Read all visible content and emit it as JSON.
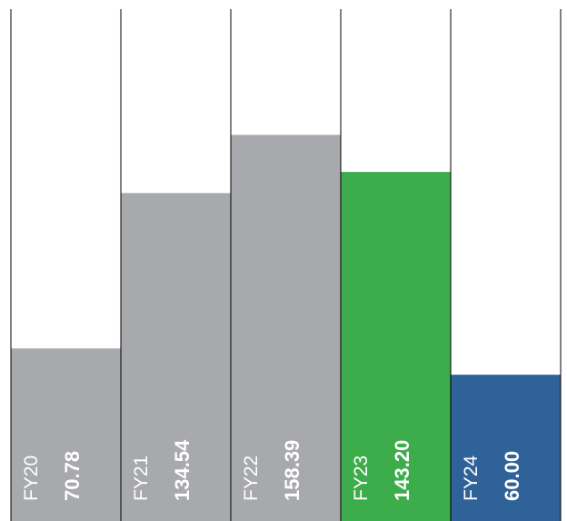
{
  "chart_data": {
    "type": "bar",
    "title": "",
    "xlabel": "",
    "ylabel": "",
    "categories": [
      "FY20",
      "FY21",
      "FY22",
      "FY23",
      "FY24"
    ],
    "values": [
      70.78,
      134.54,
      158.39,
      143.2,
      60.0
    ],
    "value_labels": [
      "70.78",
      "134.54",
      "158.39",
      "143.20",
      "60.00"
    ],
    "bar_colors": [
      "#a8a9ad",
      "#a8a9ad",
      "#a8a9ad",
      "#3dac4b",
      "#2f6299"
    ],
    "divider_color": "#000000",
    "label_color": "#ffffff",
    "grid": false,
    "legend": "none",
    "ylim": [
      0,
      210
    ]
  }
}
